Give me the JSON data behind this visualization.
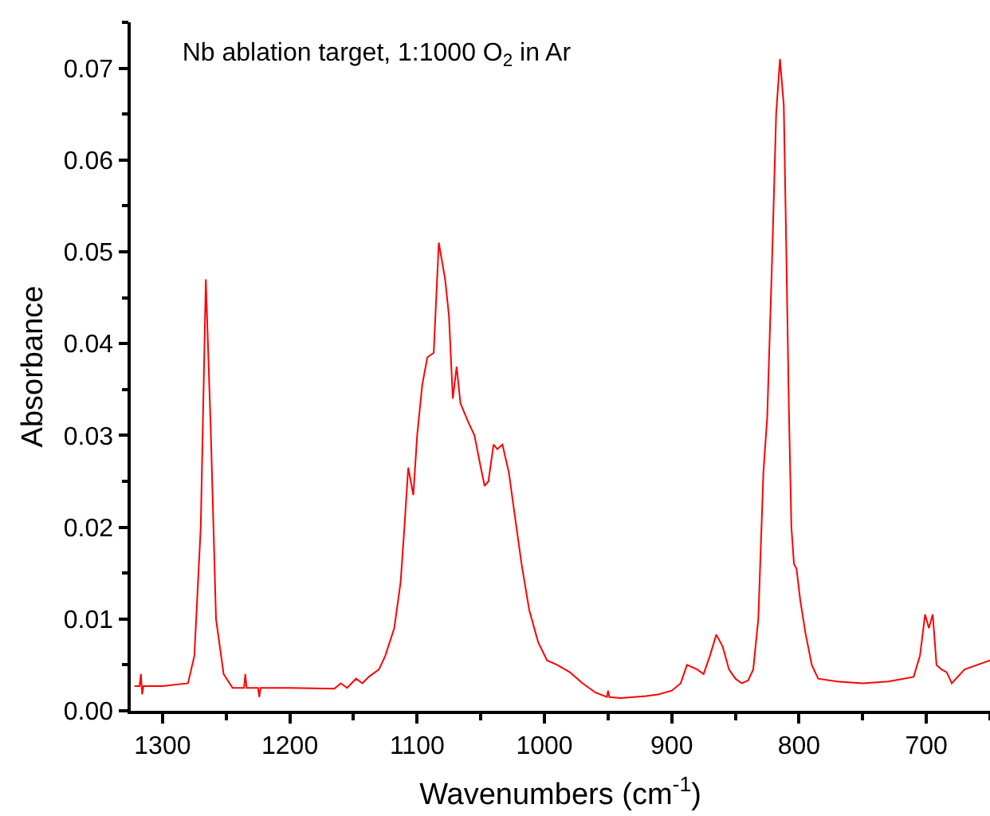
{
  "chart_data": {
    "type": "line",
    "title": "Nb ablation target, 1:1000 O$_{2}$ in Ar",
    "xlabel": "Wavenumbers (cm$^{-1}$)",
    "ylabel": "Absorbance",
    "x": [
      1322,
      1318,
      1317,
      1316,
      1315,
      1300,
      1280,
      1275,
      1270,
      1266,
      1262,
      1258,
      1252,
      1245,
      1236,
      1235,
      1234,
      1225,
      1224,
      1223,
      1200,
      1165,
      1160,
      1155,
      1148,
      1143,
      1138,
      1130,
      1125,
      1118,
      1113,
      1110,
      1107,
      1103,
      1100,
      1096,
      1092,
      1087,
      1083,
      1078,
      1075,
      1072,
      1069,
      1066,
      1060,
      1055,
      1050,
      1047,
      1044,
      1040,
      1037,
      1033,
      1028,
      1024,
      1018,
      1012,
      1005,
      998,
      990,
      980,
      970,
      960,
      951,
      950,
      949,
      940,
      930,
      920,
      910,
      900,
      893,
      888,
      880,
      875,
      870,
      865,
      860,
      855,
      850,
      845,
      840,
      836,
      832,
      828,
      825,
      821,
      818,
      815,
      812,
      810,
      808,
      806,
      804,
      802,
      799,
      795,
      790,
      785,
      770,
      750,
      730,
      710,
      705,
      701,
      698,
      695,
      692,
      688,
      684,
      680,
      670,
      660,
      650
    ],
    "series": [
      {
        "color": "#ff0000",
        "values": [
          0.0027,
          0.0027,
          0.004,
          0.0018,
          0.0027,
          0.0027,
          0.003,
          0.006,
          0.02,
          0.047,
          0.03,
          0.01,
          0.004,
          0.0025,
          0.0025,
          0.004,
          0.0025,
          0.0025,
          0.0015,
          0.0025,
          0.0025,
          0.0024,
          0.003,
          0.0025,
          0.0035,
          0.003,
          0.0037,
          0.0045,
          0.006,
          0.009,
          0.014,
          0.02,
          0.0265,
          0.0235,
          0.03,
          0.0355,
          0.0385,
          0.039,
          0.051,
          0.047,
          0.043,
          0.034,
          0.0375,
          0.0335,
          0.0315,
          0.03,
          0.0265,
          0.0245,
          0.025,
          0.029,
          0.0285,
          0.029,
          0.026,
          0.022,
          0.016,
          0.011,
          0.0075,
          0.0055,
          0.005,
          0.0042,
          0.003,
          0.002,
          0.0015,
          0.0022,
          0.0015,
          0.0014,
          0.0015,
          0.0016,
          0.0018,
          0.0022,
          0.003,
          0.005,
          0.0045,
          0.004,
          0.006,
          0.0083,
          0.007,
          0.0045,
          0.0035,
          0.003,
          0.0033,
          0.0045,
          0.01,
          0.026,
          0.032,
          0.05,
          0.065,
          0.071,
          0.066,
          0.05,
          0.033,
          0.02,
          0.016,
          0.0155,
          0.012,
          0.0085,
          0.005,
          0.0035,
          0.0032,
          0.003,
          0.0032,
          0.0037,
          0.006,
          0.0105,
          0.009,
          0.0105,
          0.005,
          0.0045,
          0.0042,
          0.003,
          0.0045,
          0.005,
          0.0055
        ]
      }
    ],
    "xlim": [
      1325,
      650
    ],
    "xticks": [
      1300,
      1200,
      1100,
      1000,
      900,
      800,
      700
    ],
    "ylim": [
      0,
      0.075
    ],
    "yticks": [
      {
        "value": 0,
        "label": "0.00"
      },
      0.01,
      0.02,
      0.03,
      0.04,
      0.05,
      0.06,
      0.07
    ]
  }
}
